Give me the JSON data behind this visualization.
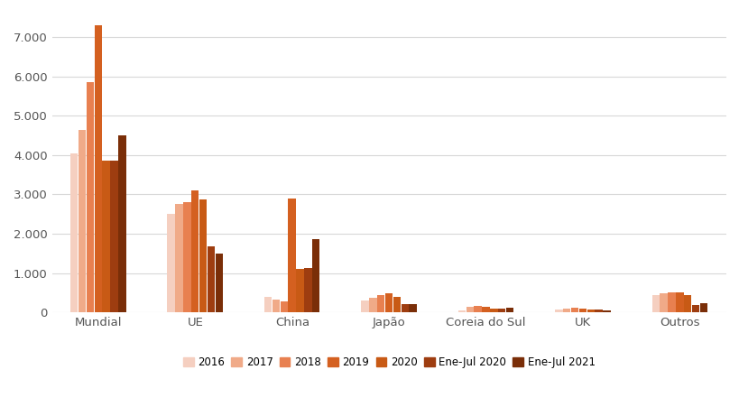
{
  "categories": [
    "Mundial",
    "UE",
    "China",
    "Japão",
    "Coreia do Sul",
    "UK",
    "Outros"
  ],
  "series": {
    "2016": [
      4050,
      2500,
      400,
      300,
      50,
      70,
      430
    ],
    "2017": [
      4650,
      2750,
      320,
      370,
      130,
      100,
      480
    ],
    "2018": [
      5850,
      2800,
      290,
      430,
      175,
      115,
      500
    ],
    "2019": [
      7300,
      3100,
      2900,
      480,
      140,
      105,
      510
    ],
    "2020": [
      3850,
      2870,
      1100,
      400,
      100,
      80,
      430
    ],
    "Ene-Jul 2020": [
      3870,
      1680,
      1120,
      220,
      105,
      65,
      185
    ],
    "Ene-Jul 2021": [
      4500,
      1490,
      1870,
      215,
      115,
      40,
      240
    ]
  },
  "colors": {
    "2016": "#f5cfc0",
    "2017": "#f0aa88",
    "2018": "#e88050",
    "2019": "#d46020",
    "2020": "#c85a15",
    "Ene-Jul 2020": "#9e3d10",
    "Ene-Jul 2021": "#7a2e08"
  },
  "legend_order": [
    "2016",
    "2017",
    "2018",
    "2019",
    "2020",
    "Ene-Jul 2020",
    "Ene-Jul 2021"
  ],
  "ylim": [
    0,
    7600
  ],
  "yticks": [
    0,
    1000,
    2000,
    3000,
    4000,
    5000,
    6000,
    7000
  ],
  "ytick_labels": [
    "0",
    "1.000",
    "2.000",
    "3.000",
    "4.000",
    "5.000",
    "6.000",
    "7.000"
  ],
  "background_color": "#ffffff",
  "grid_color": "#d8d8d8"
}
